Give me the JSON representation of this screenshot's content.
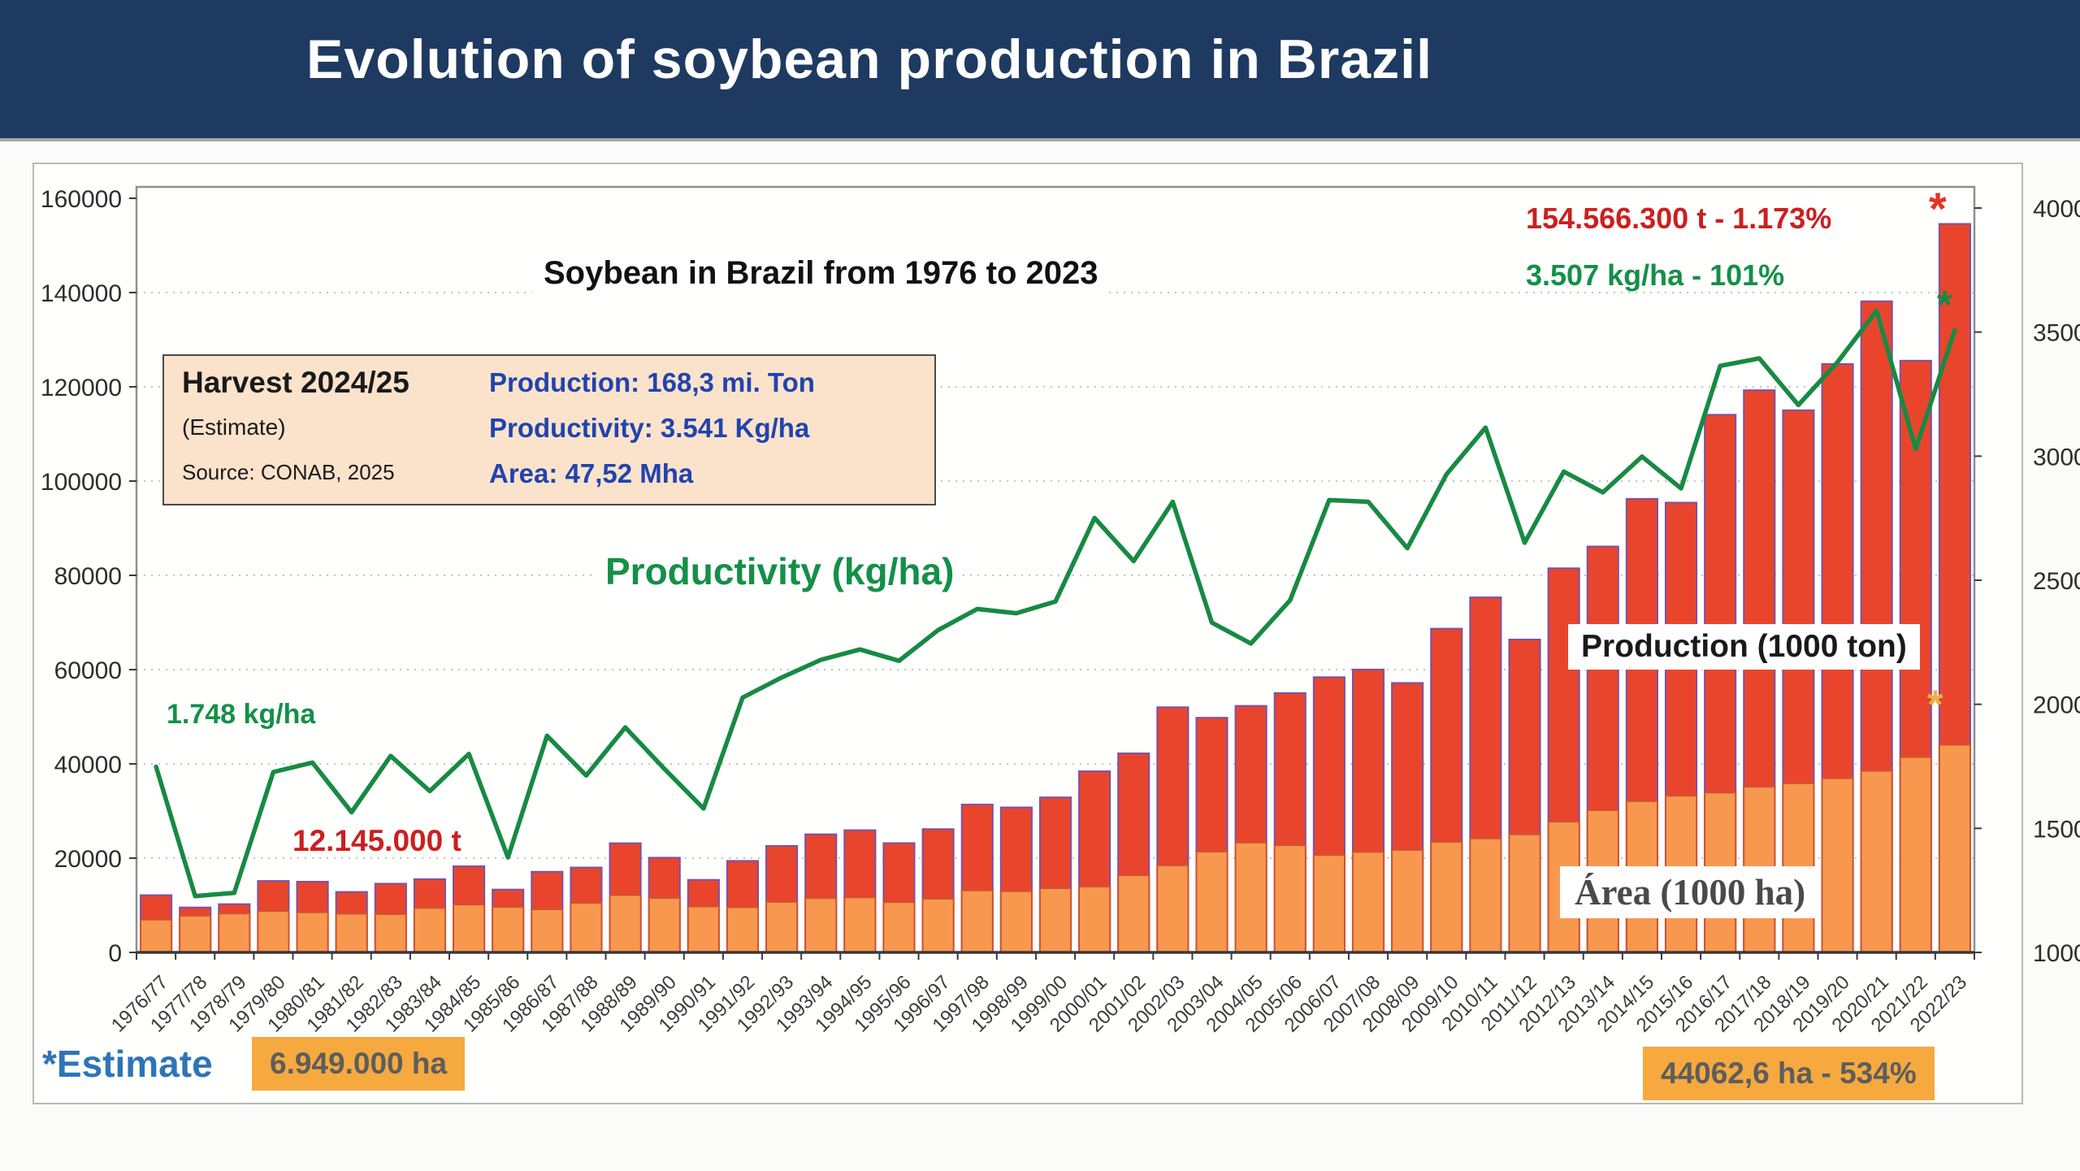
{
  "header": {
    "title": "Evolution of soybean production in Brazil"
  },
  "chart": {
    "subtitle": "Soybean in Brazil from 1976 to 2023",
    "annotations": {
      "production_record": "154.566.300 t - 1.173%",
      "productivity_record": "3.507 kg/ha - 101%",
      "first_productivity": "1.748 kg/ha",
      "first_production": "12.145.000 t",
      "productivity_label": "Productivity (kg/ha)",
      "production_legend": "Production (1000 ton)",
      "area_legend": "Área (1000 ha)",
      "estimate_star_red": "*",
      "estimate_star_green": "*",
      "estimate_star_orange": "*"
    },
    "info_box": {
      "title": "Harvest 2024/25",
      "subtitle": "(Estimate)",
      "source": "Source: CONAB, 2025",
      "production": "Production: 168,3 mi. Ton",
      "productivity": "Productivity: 3.541 Kg/ha",
      "area": "Area: 47,52 Mha"
    },
    "footer": {
      "estimate_note": "*Estimate",
      "area_start": "6.949.000 ha",
      "area_end": "44062,6 ha - 534%"
    }
  },
  "chart_data": {
    "type": "bar+line",
    "title": "Soybean in Brazil from 1976 to 2023",
    "categories": [
      "1976/77",
      "1977/78",
      "1978/79",
      "1979/80",
      "1980/81",
      "1981/82",
      "1982/83",
      "1983/84",
      "1984/85",
      "1985/86",
      "1986/87",
      "1987/88",
      "1988/89",
      "1989/90",
      "1990/91",
      "1991/92",
      "1992/93",
      "1993/94",
      "1994/95",
      "1995/96",
      "1996/97",
      "1997/98",
      "1998/99",
      "1999/00",
      "2000/01",
      "2001/02",
      "2002/03",
      "2003/04",
      "2004/05",
      "2005/06",
      "2006/07",
      "2007/08",
      "2008/09",
      "2009/10",
      "2010/11",
      "2011/12",
      "2012/13",
      "2013/14",
      "2014/15",
      "2015/16",
      "2016/17",
      "2017/18",
      "2018/19",
      "2019/20",
      "2020/21",
      "2021/22",
      "2022/23"
    ],
    "series": [
      {
        "name": "Production (1000 ton)",
        "type": "bar",
        "axis": "left",
        "color": "#e9452c",
        "values": [
          12145,
          9541,
          10240,
          15156,
          15007,
          12836,
          14582,
          15541,
          18278,
          13335,
          17112,
          18016,
          23167,
          20101,
          15395,
          19419,
          22591,
          25059,
          25934,
          23190,
          26160,
          31370,
          30765,
          32890,
          38432,
          42230,
          52018,
          49793,
          52305,
          55027,
          58392,
          60018,
          57166,
          68688,
          75324,
          66383,
          81499,
          86121,
          96228,
          95435,
          114075,
          119282,
          115030,
          124845,
          138153,
          125550,
          154566
        ]
      },
      {
        "name": "Área (1000 ha)",
        "type": "bar",
        "axis": "left",
        "color": "#f8984f",
        "values": [
          6949,
          7778,
          8256,
          8774,
          8501,
          8203,
          8137,
          9421,
          10153,
          9645,
          9137,
          10515,
          12150,
          11551,
          9743,
          9582,
          10717,
          11502,
          11679,
          10663,
          11381,
          13158,
          12995,
          13623,
          13970,
          16386,
          18475,
          21376,
          23301,
          22749,
          20687,
          21313,
          21743,
          23468,
          24181,
          25042,
          27736,
          30173,
          32093,
          33252,
          33909,
          35149,
          35874,
          36950,
          38525,
          41452,
          44063
        ]
      },
      {
        "name": "Productivity (kg/ha)",
        "type": "line",
        "axis": "right",
        "color": "#178a43",
        "values": [
          1748,
          1227,
          1240,
          1727,
          1765,
          1565,
          1792,
          1650,
          1800,
          1383,
          1873,
          1713,
          1907,
          1740,
          1580,
          2027,
          2108,
          2179,
          2221,
          2175,
          2299,
          2384,
          2367,
          2414,
          2751,
          2577,
          2816,
          2329,
          2245,
          2419,
          2823,
          2816,
          2629,
          2927,
          3115,
          2651,
          2938,
          2854,
          2998,
          2870,
          3364,
          3394,
          3206,
          3379,
          3586,
          3029,
          3508
        ]
      }
    ],
    "left_axis": {
      "min": 0,
      "max": 160000,
      "step": 20000,
      "ticks": [
        0,
        20000,
        40000,
        60000,
        80000,
        100000,
        120000,
        140000,
        160000
      ]
    },
    "right_axis": {
      "min": 1000,
      "max": 4000,
      "step": 500,
      "ticks": [
        1000,
        1500,
        2000,
        2500,
        3000,
        3500,
        4000
      ]
    },
    "grid": "horizontal-dotted",
    "legend_position": "inline-labels",
    "colors": {
      "production": "#e9452c",
      "area": "#f8984f",
      "productivity": "#178a43",
      "header": "#1e3a61",
      "badge": "#f6a93f"
    }
  }
}
